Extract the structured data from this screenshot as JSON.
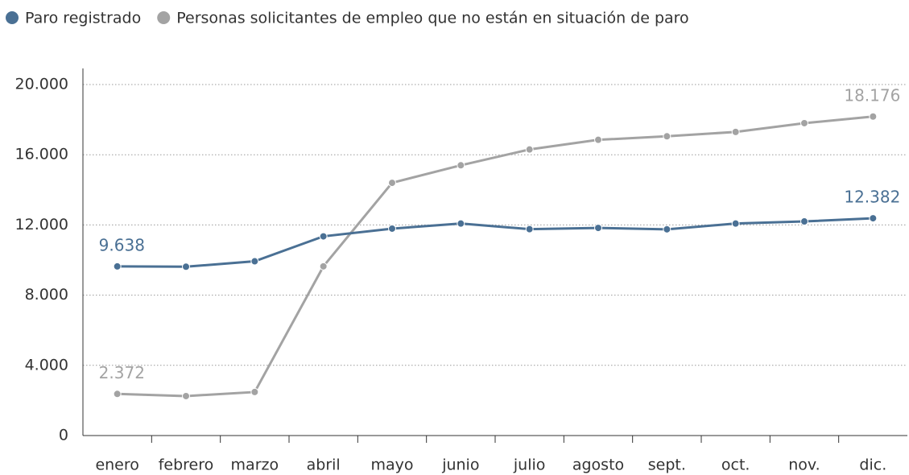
{
  "chart_data": {
    "type": "line",
    "categories": [
      "enero",
      "febrero",
      "marzo",
      "abril",
      "mayo",
      "junio",
      "julio",
      "agosto",
      "sept.",
      "oct.",
      "nov.",
      "dic."
    ],
    "series": [
      {
        "name": "Paro registrado",
        "color": "#4a7094",
        "values": [
          9638,
          9620,
          9930,
          11350,
          11790,
          12080,
          11760,
          11830,
          11750,
          12080,
          12200,
          12382
        ],
        "value_labels": [
          "9.638",
          null,
          null,
          null,
          null,
          null,
          null,
          null,
          null,
          null,
          null,
          "12.382"
        ]
      },
      {
        "name": "Personas solicitantes de empleo que no están en situación de paro",
        "color": "#a3a3a3",
        "values": [
          2372,
          2250,
          2480,
          9640,
          14400,
          15400,
          16300,
          16850,
          17050,
          17300,
          17800,
          18176
        ],
        "value_labels": [
          "2.372",
          null,
          null,
          null,
          null,
          null,
          null,
          null,
          null,
          null,
          null,
          "18.176"
        ]
      }
    ],
    "ylim": [
      0,
      20000
    ],
    "yticks": [
      0,
      {
        "value": 4000,
        "label": "4.000"
      },
      {
        "value": 8000,
        "label": "8.000"
      },
      {
        "value": 12000,
        "label": "12.000"
      },
      {
        "value": 16000,
        "label": "16.000"
      },
      {
        "value": 20000,
        "label": "20.000"
      }
    ],
    "grid": true
  }
}
